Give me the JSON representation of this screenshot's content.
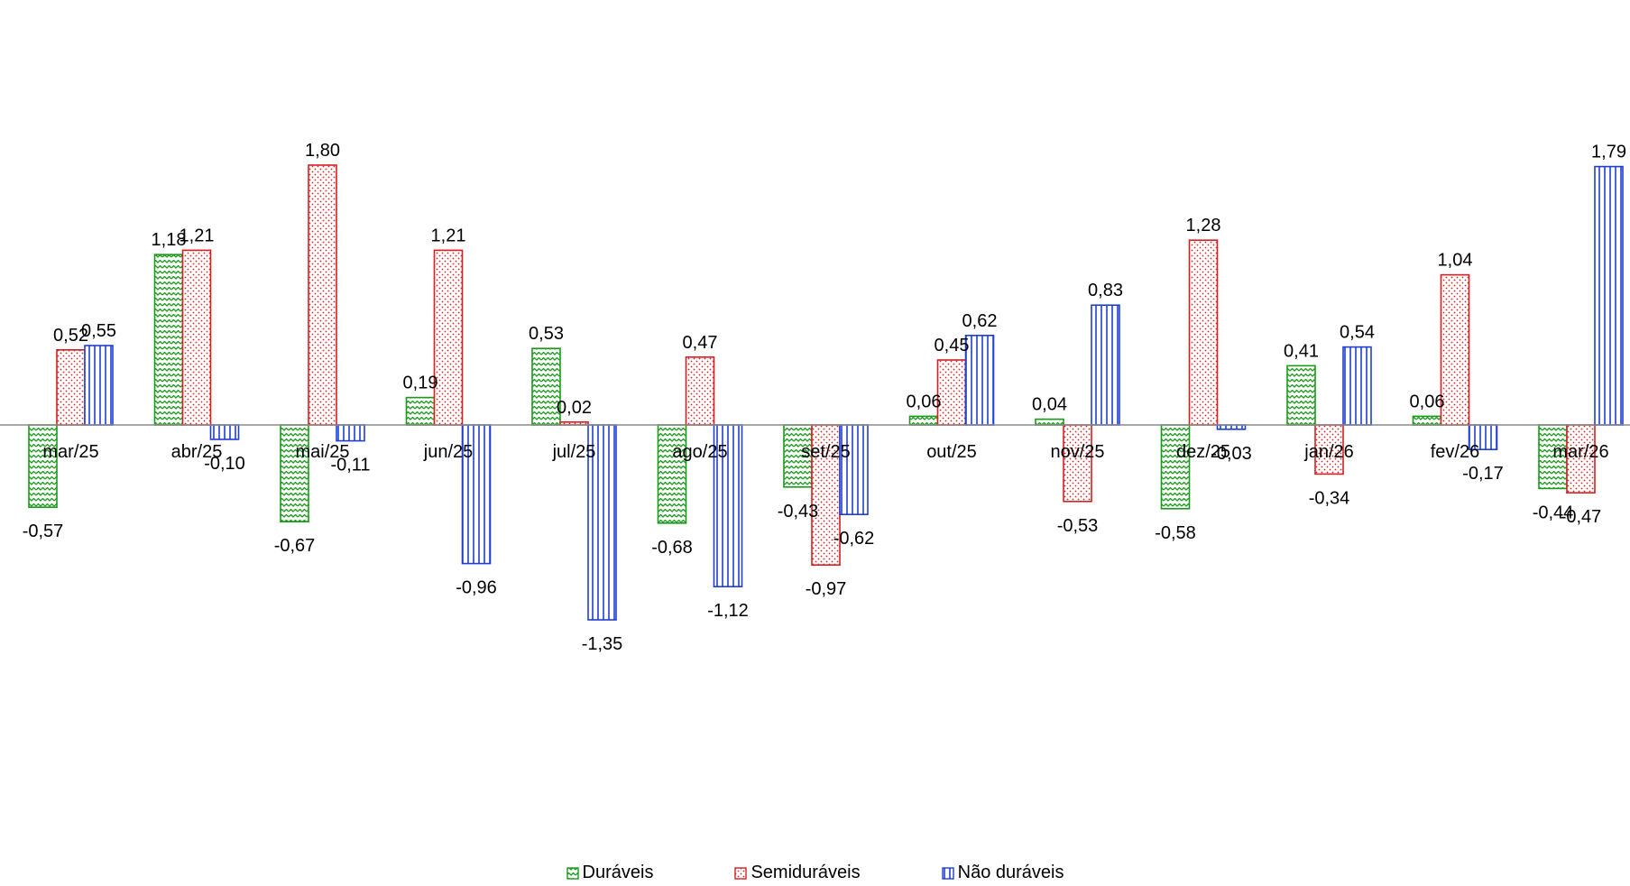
{
  "chart_data": {
    "type": "bar",
    "title": "",
    "xlabel": "",
    "ylabel": "",
    "ylim": [
      -1.9,
      2.0
    ],
    "grid": false,
    "legend_position": "bottom-center",
    "categories": [
      "mar/25",
      "abr/25",
      "mai/25",
      "jun/25",
      "jul/25",
      "ago/25",
      "set/25",
      "out/25",
      "nov/25",
      "dez/25",
      "jan/26",
      "fev/26",
      "mar/26"
    ],
    "series": [
      {
        "name": "Duráveis",
        "color": "#1a9a1a",
        "pattern": "zigzag",
        "values": [
          -0.57,
          1.18,
          -0.67,
          0.19,
          0.53,
          -0.68,
          -0.43,
          0.06,
          0.04,
          -0.58,
          0.41,
          0.06,
          -0.44
        ],
        "labels": [
          "-0,57",
          "1,18",
          "-0,67",
          "0,19",
          "0,53",
          "-0,68",
          "-0,43",
          "0,06",
          "0,04",
          "-0,58",
          "0,41",
          "0,06",
          "-0,44"
        ]
      },
      {
        "name": "Semiduráveis",
        "color": "#d42020",
        "pattern": "dots",
        "values": [
          0.52,
          1.21,
          1.8,
          1.21,
          0.02,
          0.47,
          -0.97,
          0.45,
          -0.53,
          1.28,
          -0.34,
          1.04,
          -0.47
        ],
        "labels": [
          "0,52",
          "1,21",
          "1,80",
          "1,21",
          "0,02",
          "0,47",
          "-0,97",
          "0,45",
          "-0,53",
          "1,28",
          "-0,34",
          "1,04",
          "-0,47"
        ]
      },
      {
        "name": "Não duráveis",
        "color": "#1f3fcf",
        "pattern": "vertical-lines",
        "values": [
          0.55,
          -0.1,
          -0.11,
          -0.96,
          -1.35,
          -1.12,
          -0.62,
          0.62,
          0.83,
          -0.03,
          0.54,
          -0.17,
          1.79
        ],
        "labels": [
          "0,55",
          "-0,10",
          "-0,11",
          "-0,96",
          "-1,35",
          "-1,12",
          "-0,62",
          "0,62",
          "0,83",
          "-0,03",
          "0,54",
          "-0,17",
          "1,79"
        ]
      }
    ]
  }
}
